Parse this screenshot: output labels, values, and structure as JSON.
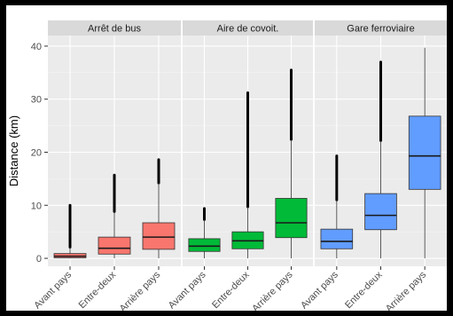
{
  "chart_data": {
    "type": "boxplot",
    "ylabel": "Distance (km)",
    "ylim": [
      -1.5,
      42
    ],
    "yticks": [
      0,
      10,
      20,
      30,
      40
    ],
    "categories": [
      "Avant pays",
      "Entre-deux",
      "Arrière pays"
    ],
    "facets": [
      {
        "name": "Arrêt de bus",
        "color": "#F8766D",
        "boxes": [
          {
            "category": "Avant pays",
            "q1": 0.1,
            "median": 0.4,
            "q3": 0.9,
            "whisker_low": 0,
            "whisker_high": 2.1,
            "outliers_max": 10.0
          },
          {
            "category": "Entre-deux",
            "q1": 0.8,
            "median": 1.9,
            "q3": 4.0,
            "whisker_low": 0,
            "whisker_high": 8.8,
            "outliers_max": 15.7
          },
          {
            "category": "Arrière pays",
            "q1": 1.7,
            "median": 4.0,
            "q3": 6.7,
            "whisker_low": 0,
            "whisker_high": 14.2,
            "outliers_max": 18.6
          }
        ]
      },
      {
        "name": "Aire de covoit.",
        "color": "#00BA38",
        "boxes": [
          {
            "category": "Avant pays",
            "q1": 1.3,
            "median": 2.3,
            "q3": 3.7,
            "whisker_low": 0,
            "whisker_high": 7.3,
            "outliers_max": 9.4
          },
          {
            "category": "Entre-deux",
            "q1": 1.8,
            "median": 3.3,
            "q3": 5.0,
            "whisker_low": 0,
            "whisker_high": 9.7,
            "outliers_max": 31.2
          },
          {
            "category": "Arrière pays",
            "q1": 3.9,
            "median": 6.7,
            "q3": 11.3,
            "whisker_low": 0,
            "whisker_high": 22.4,
            "outliers_max": 35.5
          }
        ]
      },
      {
        "name": "Gare ferroviaire",
        "color": "#619CFF",
        "boxes": [
          {
            "category": "Avant pays",
            "q1": 1.8,
            "median": 3.2,
            "q3": 5.5,
            "whisker_low": 0,
            "whisker_high": 11.0,
            "outliers_max": 19.3
          },
          {
            "category": "Entre-deux",
            "q1": 5.4,
            "median": 8.1,
            "q3": 12.2,
            "whisker_low": 0,
            "whisker_high": 22.2,
            "outliers_max": 37.0
          },
          {
            "category": "Arrière pays",
            "q1": 13.0,
            "median": 19.3,
            "q3": 26.8,
            "whisker_low": 0,
            "whisker_high": 39.7,
            "outliers_max": null
          }
        ]
      }
    ]
  }
}
